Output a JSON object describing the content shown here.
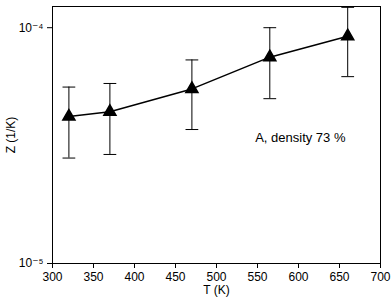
{
  "chart_data": {
    "type": "line",
    "x_label": "T (K)",
    "y_label": "Z (1/K)",
    "annotation": "A, density 73 %",
    "x": [
      320,
      370,
      470,
      565,
      660
    ],
    "series": [
      {
        "name": null,
        "color": "#000000",
        "marker": "triangle",
        "line_style": "solid",
        "values": [
          4.2e-05,
          4.4e-05,
          5.5e-05,
          7.5e-05,
          9.2e-05
        ],
        "error_low": [
          2.8e-05,
          2.9e-05,
          3.7e-05,
          5e-05,
          6.2e-05
        ],
        "error_high": [
          5.6e-05,
          5.8e-05,
          7.3e-05,
          0.0001,
          0.000122
        ]
      }
    ],
    "xlim": [
      300,
      700
    ],
    "xticks": [
      300,
      350,
      400,
      450,
      500,
      550,
      600,
      650,
      700
    ],
    "ylim": [
      1e-05,
      0.000123
    ],
    "yticks": [
      {
        "value": 1e-05,
        "label": "10⁻⁵"
      },
      {
        "value": 0.0001,
        "label": "10⁻⁴"
      }
    ],
    "log": "y",
    "grid": false
  }
}
